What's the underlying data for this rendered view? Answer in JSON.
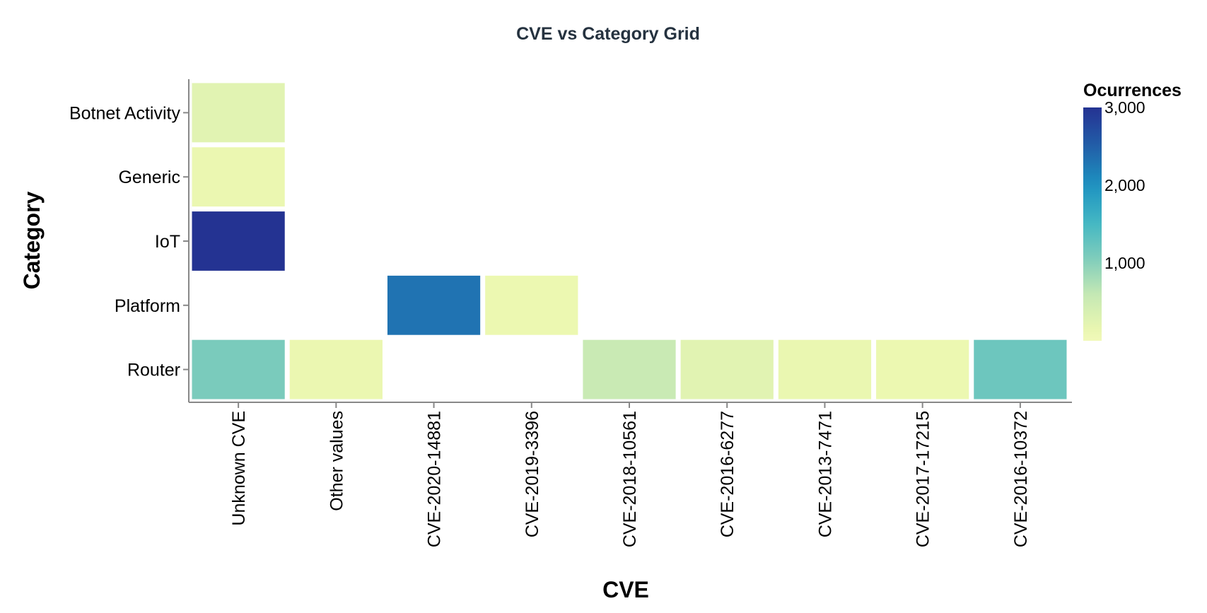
{
  "chart_data": {
    "type": "heatmap",
    "title": "CVE vs Category Grid",
    "xlabel": "CVE",
    "ylabel": "Category",
    "x_categories": [
      "Unknown CVE",
      "Other values",
      "CVE-2020-14881",
      "CVE-2019-3396",
      "CVE-2018-10561",
      "CVE-2016-6277",
      "CVE-2013-7471",
      "CVE-2017-17215",
      "CVE-2016-10372"
    ],
    "y_categories": [
      "Botnet Activity",
      "Generic",
      "IoT",
      "Platform",
      "Router"
    ],
    "cells": [
      {
        "x": "Unknown CVE",
        "y": "Botnet Activity",
        "value": 250
      },
      {
        "x": "Unknown CVE",
        "y": "Generic",
        "value": 120
      },
      {
        "x": "Unknown CVE",
        "y": "IoT",
        "value": 3000
      },
      {
        "x": "Unknown CVE",
        "y": "Router",
        "value": 1100
      },
      {
        "x": "Other values",
        "y": "Router",
        "value": 120
      },
      {
        "x": "CVE-2020-14881",
        "y": "Platform",
        "value": 2300
      },
      {
        "x": "CVE-2019-3396",
        "y": "Platform",
        "value": 110
      },
      {
        "x": "CVE-2018-10561",
        "y": "Router",
        "value": 550
      },
      {
        "x": "CVE-2016-6277",
        "y": "Router",
        "value": 250
      },
      {
        "x": "CVE-2013-7471",
        "y": "Router",
        "value": 130
      },
      {
        "x": "CVE-2017-17215",
        "y": "Router",
        "value": 110
      },
      {
        "x": "CVE-2016-10372",
        "y": "Router",
        "value": 1200
      }
    ],
    "legend": {
      "title": "Ocurrences",
      "ticks": [
        1000,
        2000,
        3000
      ],
      "tick_labels": [
        "1,000",
        "2,000",
        "3,000"
      ],
      "domain": [
        0,
        3000
      ],
      "placement": "right",
      "color_scheme": [
        "#ffffd9",
        "#edf8b1",
        "#c7e9b4",
        "#7fcdbb",
        "#41b6c4",
        "#1d91c0",
        "#225ea8",
        "#253494",
        "#081d58"
      ]
    }
  }
}
